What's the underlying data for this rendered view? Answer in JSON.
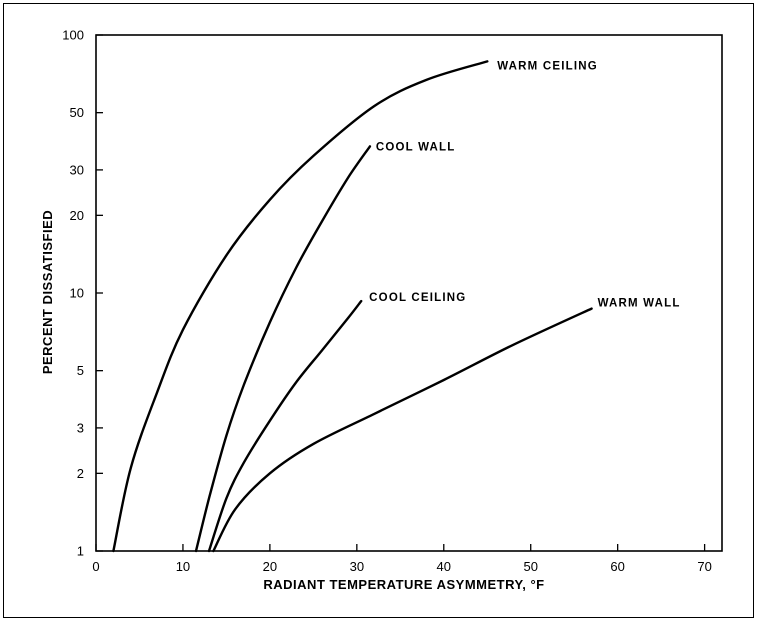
{
  "chart_data": {
    "type": "line",
    "title": "",
    "xlabel": "RADIANT TEMPERATURE ASYMMETRY, °F",
    "ylabel": "PERCENT DISSATISFIED",
    "xlim": [
      0,
      72
    ],
    "ylim": [
      1,
      100
    ],
    "y_scale": "log",
    "grid": false,
    "x_ticks": [
      0,
      10,
      20,
      30,
      40,
      50,
      60,
      70
    ],
    "y_ticks": [
      1,
      2,
      3,
      5,
      10,
      20,
      30,
      50,
      100
    ],
    "y_tick_labels": [
      "1",
      "2",
      "3",
      "5",
      "10",
      "20",
      "30",
      "50",
      "100"
    ],
    "series": [
      {
        "name": "WARM CEILING",
        "x": [
          2,
          4,
          7,
          10,
          15,
          20,
          25,
          32,
          38,
          45
        ],
        "y": [
          1,
          2.1,
          4.1,
          7.2,
          14,
          23,
          34,
          53,
          67,
          79
        ]
      },
      {
        "name": "COOL WALL",
        "x": [
          11.5,
          13,
          15,
          17,
          20,
          23,
          26,
          29,
          31.5
        ],
        "y": [
          1,
          1.6,
          2.8,
          4.4,
          7.7,
          12.5,
          19,
          28,
          37
        ]
      },
      {
        "name": "COOL CEILING",
        "x": [
          13,
          15,
          17,
          20,
          23,
          26,
          29,
          30.5
        ],
        "y": [
          1,
          1.6,
          2.2,
          3.2,
          4.5,
          6.0,
          8.0,
          9.3
        ]
      },
      {
        "name": "WARM WALL",
        "x": [
          13.5,
          16,
          20,
          25,
          32,
          40,
          48,
          57
        ],
        "y": [
          1,
          1.45,
          2.0,
          2.6,
          3.4,
          4.6,
          6.3,
          8.7
        ]
      }
    ]
  }
}
